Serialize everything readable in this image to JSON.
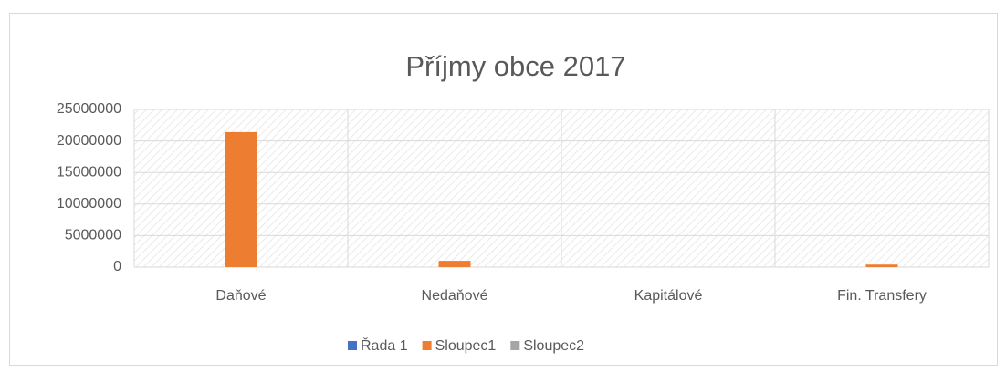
{
  "chart_data": {
    "type": "bar",
    "title": "Příjmy obce 2017",
    "categories": [
      "Daňové",
      "Nedaňové",
      "Kapitálové",
      "Fin. Transfery"
    ],
    "series": [
      {
        "name": "Řada 1",
        "color": "#4472c4",
        "values": [
          0,
          0,
          0,
          0
        ]
      },
      {
        "name": "Sloupec1",
        "color": "#ed7d31",
        "values": [
          21400000,
          1000000,
          0,
          400000
        ]
      },
      {
        "name": "Sloupec2",
        "color": "#a5a5a5",
        "values": [
          0,
          0,
          0,
          0
        ]
      }
    ],
    "ylim": [
      0,
      25000000
    ],
    "yticks": [
      0,
      5000000,
      10000000,
      15000000,
      20000000,
      25000000
    ],
    "grid": true,
    "legend": "bottom"
  }
}
